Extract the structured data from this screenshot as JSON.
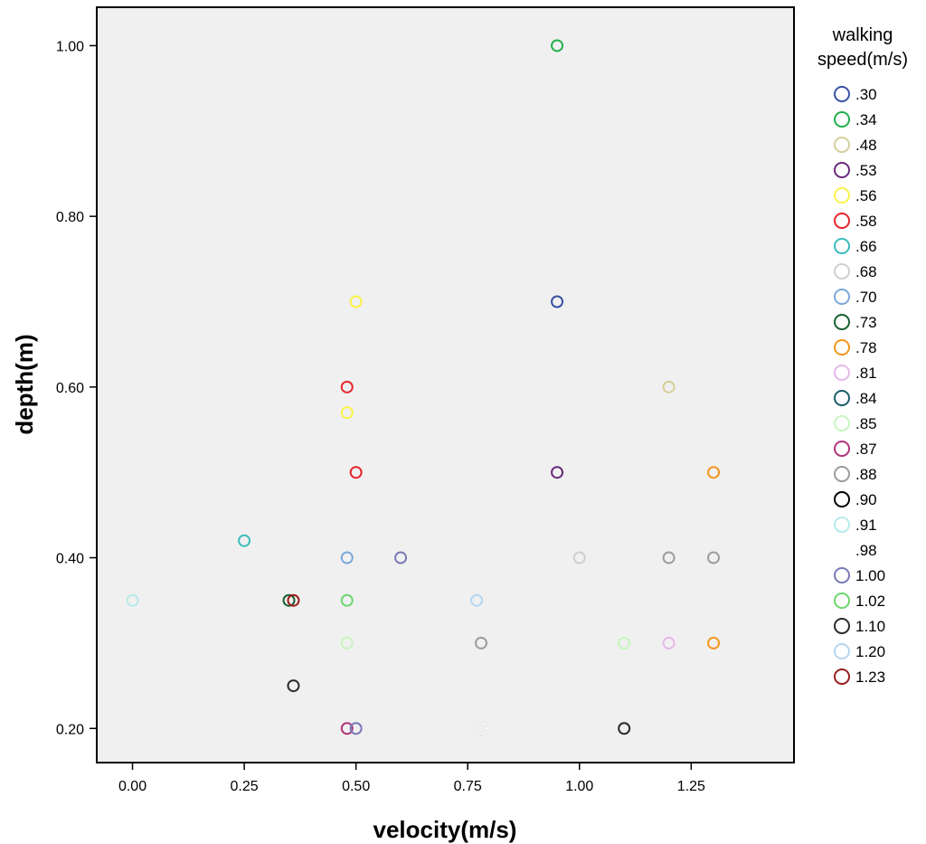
{
  "chart_data": {
    "type": "scatter",
    "xlabel": "velocity(m/s)",
    "ylabel": "depth(m)",
    "xlim": [
      -0.08,
      1.48
    ],
    "ylim": [
      0.16,
      1.045
    ],
    "x_ticks": [
      {
        "value": 0.0,
        "label": "0.00"
      },
      {
        "value": 0.25,
        "label": "0.25"
      },
      {
        "value": 0.5,
        "label": "0.50"
      },
      {
        "value": 0.75,
        "label": "0.75"
      },
      {
        "value": 1.0,
        "label": "1.00"
      },
      {
        "value": 1.25,
        "label": "1.25"
      }
    ],
    "y_ticks": [
      {
        "value": 0.2,
        "label": "0.20"
      },
      {
        "value": 0.4,
        "label": "0.40"
      },
      {
        "value": 0.6,
        "label": "0.60"
      },
      {
        "value": 0.8,
        "label": "0.80"
      },
      {
        "value": 1.0,
        "label": "1.00"
      }
    ],
    "grid": false,
    "background": "#f0f0f0",
    "legend_placement": "right",
    "legend_title_lines": [
      "walking",
      "speed(m/s)"
    ],
    "series": [
      {
        "name": ".30",
        "color": "#3953a4",
        "points": [
          [
            0.95,
            0.7
          ]
        ]
      },
      {
        "name": ".34",
        "color": "#22b04b",
        "points": [
          [
            0.95,
            1.0
          ]
        ]
      },
      {
        "name": ".48",
        "color": "#d6cf9a",
        "points": [
          [
            1.2,
            0.6
          ]
        ]
      },
      {
        "name": ".53",
        "color": "#6a2a7a",
        "points": [
          [
            0.95,
            0.5
          ]
        ]
      },
      {
        "name": ".56",
        "color": "#fbf24a",
        "points": [
          [
            0.5,
            0.7
          ],
          [
            0.48,
            0.57
          ]
        ]
      },
      {
        "name": ".58",
        "color": "#e8252d",
        "points": [
          [
            0.48,
            0.6
          ],
          [
            0.5,
            0.5
          ]
        ]
      },
      {
        "name": ".66",
        "color": "#3cbdbd",
        "points": [
          [
            0.25,
            0.42
          ]
        ]
      },
      {
        "name": ".68",
        "color": "#cfcfcf",
        "points": [
          [
            1.0,
            0.4
          ]
        ]
      },
      {
        "name": ".70",
        "color": "#7aa8da",
        "points": [
          [
            0.48,
            0.4
          ]
        ]
      },
      {
        "name": ".73",
        "color": "#1b5e32",
        "points": [
          [
            0.35,
            0.35
          ]
        ]
      },
      {
        "name": ".78",
        "color": "#f5961e",
        "points": [
          [
            1.3,
            0.5
          ],
          [
            1.3,
            0.3
          ]
        ]
      },
      {
        "name": ".81",
        "color": "#e6b8ec",
        "points": [
          [
            1.2,
            0.3
          ]
        ]
      },
      {
        "name": ".84",
        "color": "#1c5e6a",
        "points": []
      },
      {
        "name": ".85",
        "color": "#c8f5c0",
        "points": [
          [
            0.48,
            0.3
          ],
          [
            1.1,
            0.3
          ]
        ]
      },
      {
        "name": ".87",
        "color": "#b0357c",
        "points": [
          [
            0.48,
            0.2
          ]
        ]
      },
      {
        "name": ".88",
        "color": "#9c9c9c",
        "points": [
          [
            0.78,
            0.3
          ],
          [
            1.2,
            0.4
          ],
          [
            1.3,
            0.4
          ]
        ]
      },
      {
        "name": ".90",
        "color": "#000000",
        "points": [
          [
            0.78,
            0.2
          ]
        ]
      },
      {
        "name": ".91",
        "color": "#b7eaea",
        "points": [
          [
            0.0,
            0.35
          ]
        ]
      },
      {
        "name": ".98",
        "color": "#ffffff",
        "points": [
          [
            0.78,
            0.2
          ]
        ]
      },
      {
        "name": "1.00",
        "color": "#7a7ab8",
        "points": [
          [
            0.6,
            0.4
          ],
          [
            0.5,
            0.2
          ]
        ]
      },
      {
        "name": "1.02",
        "color": "#6ed66e",
        "points": [
          [
            0.48,
            0.35
          ]
        ]
      },
      {
        "name": "1.10",
        "color": "#2b2b2b",
        "points": [
          [
            0.36,
            0.25
          ],
          [
            1.1,
            0.2
          ]
        ]
      },
      {
        "name": "1.20",
        "color": "#b5d6f0",
        "points": [
          [
            0.77,
            0.35
          ]
        ]
      },
      {
        "name": "1.23",
        "color": "#9b1d1d",
        "points": [
          [
            0.36,
            0.35
          ]
        ]
      }
    ]
  }
}
